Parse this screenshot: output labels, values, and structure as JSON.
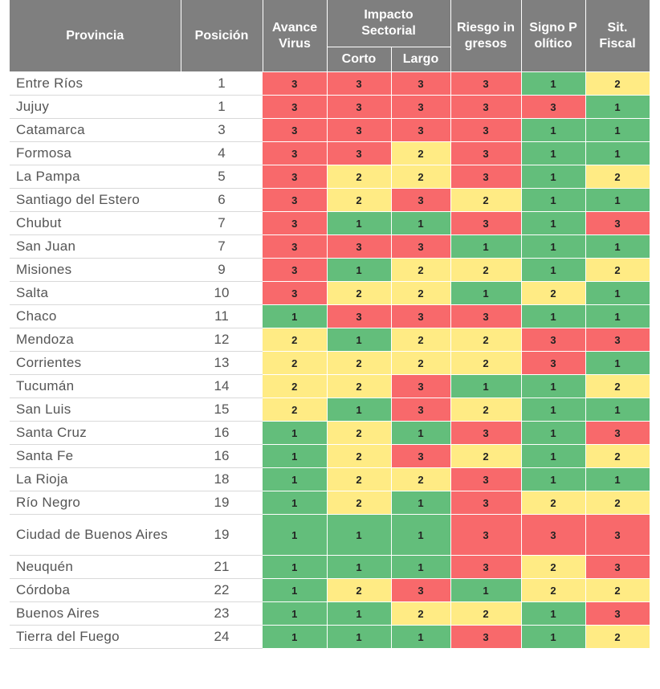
{
  "headers": {
    "provincia": "Provincia",
    "posicion": "Posición",
    "avance_virus": "Avance Virus",
    "impacto_sectorial": "Impacto Sectorial",
    "corto": "Corto",
    "largo": "Largo",
    "riesgo_ingresos": "Riesgo ingresos",
    "signo_politico": "Signo Político",
    "sit_fiscal": "Sit. Fiscal"
  },
  "colors": {
    "1": "#63be7b",
    "2": "#ffeb84",
    "3": "#f8696b",
    "header": "#7f7f7f"
  },
  "rows": [
    {
      "provincia": "Entre Ríos",
      "posicion": "1",
      "values": [
        3,
        3,
        3,
        3,
        1,
        2
      ]
    },
    {
      "provincia": "Jujuy",
      "posicion": "1",
      "values": [
        3,
        3,
        3,
        3,
        3,
        1
      ]
    },
    {
      "provincia": "Catamarca",
      "posicion": "3",
      "values": [
        3,
        3,
        3,
        3,
        1,
        1
      ]
    },
    {
      "provincia": "Formosa",
      "posicion": "4",
      "values": [
        3,
        3,
        2,
        3,
        1,
        1
      ]
    },
    {
      "provincia": "La Pampa",
      "posicion": "5",
      "values": [
        3,
        2,
        2,
        3,
        1,
        2
      ]
    },
    {
      "provincia": "Santiago del Estero",
      "posicion": "6",
      "values": [
        3,
        2,
        3,
        2,
        1,
        1
      ]
    },
    {
      "provincia": "Chubut",
      "posicion": "7",
      "values": [
        3,
        1,
        1,
        3,
        1,
        3
      ]
    },
    {
      "provincia": "San Juan",
      "posicion": "7",
      "values": [
        3,
        3,
        3,
        1,
        1,
        1
      ]
    },
    {
      "provincia": "Misiones",
      "posicion": "9",
      "values": [
        3,
        1,
        2,
        2,
        1,
        2
      ]
    },
    {
      "provincia": "Salta",
      "posicion": "10",
      "values": [
        3,
        2,
        2,
        1,
        2,
        1
      ]
    },
    {
      "provincia": "Chaco",
      "posicion": "11",
      "values": [
        1,
        3,
        3,
        3,
        1,
        1
      ]
    },
    {
      "provincia": "Mendoza",
      "posicion": "12",
      "values": [
        2,
        1,
        2,
        2,
        3,
        3
      ]
    },
    {
      "provincia": "Corrientes",
      "posicion": "13",
      "values": [
        2,
        2,
        2,
        2,
        3,
        1
      ]
    },
    {
      "provincia": "Tucumán",
      "posicion": "14",
      "values": [
        2,
        2,
        3,
        1,
        1,
        2
      ]
    },
    {
      "provincia": "San Luis",
      "posicion": "15",
      "values": [
        2,
        1,
        3,
        2,
        1,
        1
      ]
    },
    {
      "provincia": "Santa Cruz",
      "posicion": "16",
      "values": [
        1,
        2,
        1,
        3,
        1,
        3
      ]
    },
    {
      "provincia": "Santa Fe",
      "posicion": "16",
      "values": [
        1,
        2,
        3,
        2,
        1,
        2
      ]
    },
    {
      "provincia": "La Rioja",
      "posicion": "18",
      "values": [
        1,
        2,
        2,
        3,
        1,
        1
      ]
    },
    {
      "provincia": "Río Negro",
      "posicion": "19",
      "values": [
        1,
        2,
        1,
        3,
        2,
        2
      ]
    },
    {
      "provincia": "Ciudad de Buenos Aires",
      "posicion": "19",
      "values": [
        1,
        1,
        1,
        3,
        3,
        3
      ]
    },
    {
      "provincia": "Neuquén",
      "posicion": "21",
      "values": [
        1,
        1,
        1,
        3,
        2,
        3
      ]
    },
    {
      "provincia": "Córdoba",
      "posicion": "22",
      "values": [
        1,
        2,
        3,
        1,
        2,
        2
      ]
    },
    {
      "provincia": "Buenos Aires",
      "posicion": "23",
      "values": [
        1,
        1,
        2,
        2,
        1,
        3
      ]
    },
    {
      "provincia": "Tierra del Fuego",
      "posicion": "24",
      "values": [
        1,
        1,
        1,
        3,
        1,
        2
      ]
    }
  ]
}
